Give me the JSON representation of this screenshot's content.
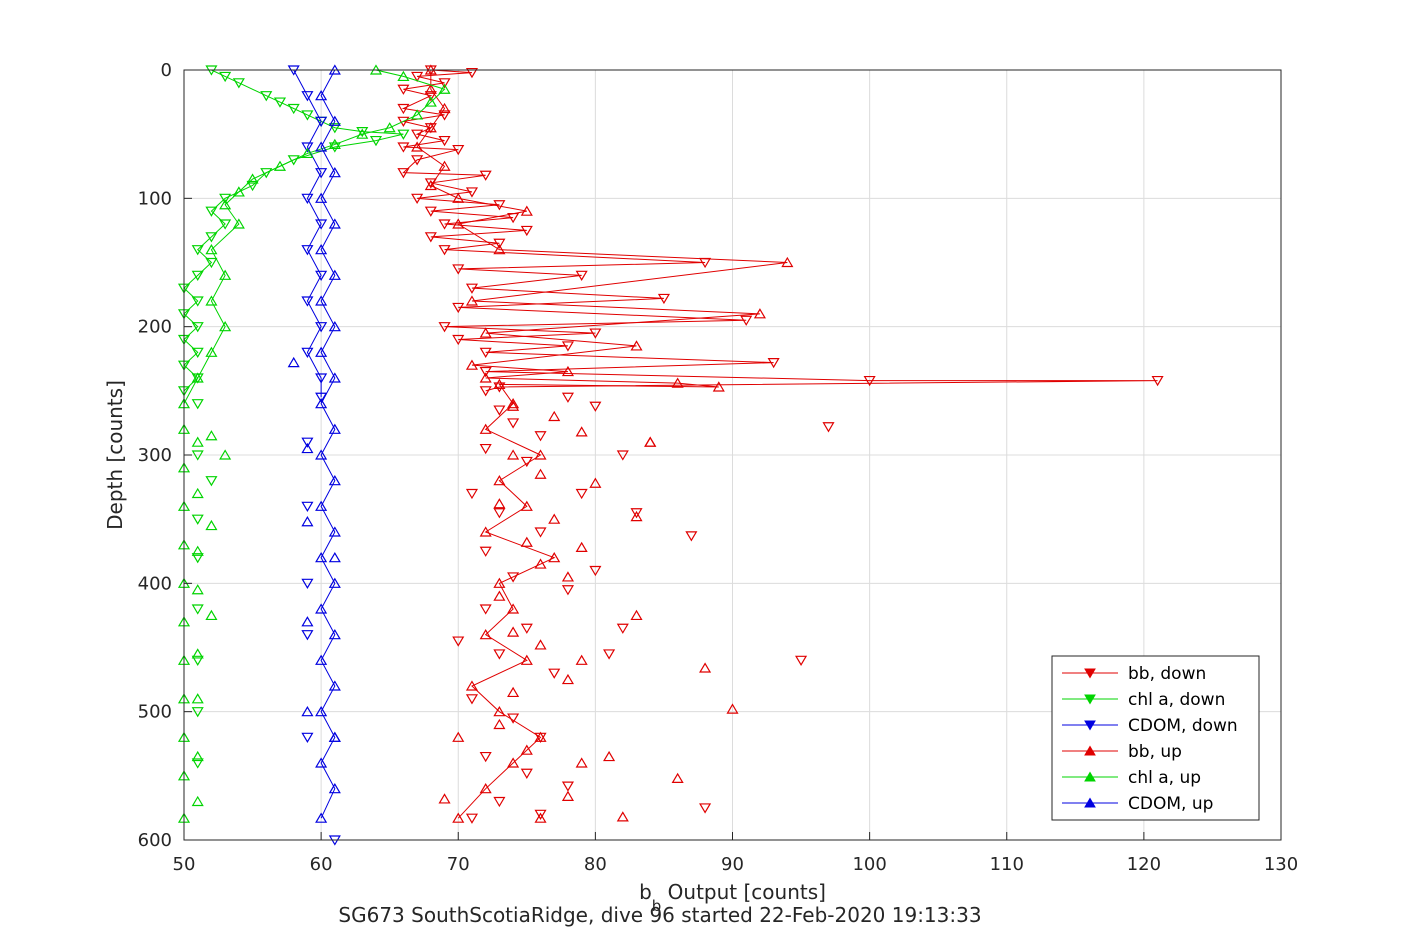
{
  "chart_data": {
    "type": "scatter",
    "xlabel": "b",
    "xlabel_sub": "b",
    "xlabel_rest": " Output [counts]",
    "ylabel": "Depth [counts]",
    "caption": "SG673 SouthScotiaRidge, dive 96 started 22-Feb-2020 19:13:33",
    "xlim": [
      50,
      130
    ],
    "ylim": [
      0,
      600
    ],
    "y_reversed": true,
    "xticks": [
      50,
      60,
      70,
      80,
      90,
      100,
      110,
      120,
      130
    ],
    "yticks": [
      0,
      100,
      200,
      300,
      400,
      500,
      600
    ],
    "grid": true,
    "legend_position": "bottom-right",
    "series": [
      {
        "name": "bb, down",
        "color": "#e00000",
        "marker": "down-triangle",
        "line": true,
        "points": [
          [
            68,
            0
          ],
          [
            71,
            2
          ],
          [
            67,
            5
          ],
          [
            69,
            10
          ],
          [
            66,
            15
          ],
          [
            68,
            20
          ],
          [
            66,
            30
          ],
          [
            69,
            35
          ],
          [
            66,
            40
          ],
          [
            68,
            45
          ],
          [
            67,
            50
          ],
          [
            69,
            55
          ],
          [
            66,
            60
          ],
          [
            70,
            62
          ],
          [
            67,
            70
          ],
          [
            66,
            80
          ],
          [
            72,
            82
          ],
          [
            68,
            88
          ],
          [
            71,
            95
          ],
          [
            67,
            100
          ],
          [
            73,
            105
          ],
          [
            68,
            110
          ],
          [
            74,
            115
          ],
          [
            69,
            120
          ],
          [
            75,
            125
          ],
          [
            68,
            130
          ],
          [
            73,
            135
          ],
          [
            69,
            140
          ],
          [
            88,
            150
          ],
          [
            70,
            155
          ],
          [
            79,
            160
          ],
          [
            71,
            170
          ],
          [
            85,
            178
          ],
          [
            70,
            185
          ],
          [
            91,
            195
          ],
          [
            69,
            200
          ],
          [
            80,
            205
          ],
          [
            70,
            210
          ],
          [
            78,
            215
          ],
          [
            72,
            220
          ],
          [
            93,
            228
          ],
          [
            72,
            235
          ],
          [
            100,
            242
          ],
          [
            121,
            242
          ],
          [
            73,
            247
          ],
          [
            72,
            250
          ]
        ]
      },
      {
        "name": "chl a, down",
        "color": "#00d400",
        "marker": "down-triangle",
        "line": true,
        "points": [
          [
            52,
            0
          ],
          [
            53,
            5
          ],
          [
            54,
            10
          ],
          [
            56,
            20
          ],
          [
            57,
            25
          ],
          [
            58,
            30
          ],
          [
            59,
            35
          ],
          [
            60,
            40
          ],
          [
            61,
            45
          ],
          [
            63,
            48
          ],
          [
            66,
            50
          ],
          [
            64,
            55
          ],
          [
            61,
            60
          ],
          [
            58,
            70
          ],
          [
            56,
            80
          ],
          [
            55,
            90
          ],
          [
            53,
            100
          ],
          [
            52,
            110
          ],
          [
            53,
            120
          ],
          [
            52,
            130
          ],
          [
            51,
            140
          ],
          [
            52,
            150
          ],
          [
            51,
            160
          ],
          [
            50,
            170
          ],
          [
            51,
            180
          ],
          [
            50,
            190
          ],
          [
            51,
            200
          ],
          [
            50,
            210
          ],
          [
            51,
            220
          ],
          [
            50,
            230
          ],
          [
            51,
            240
          ],
          [
            50,
            250
          ]
        ]
      },
      {
        "name": "CDOM, down",
        "color": "#0000e0",
        "marker": "down-triangle",
        "line": true,
        "points": [
          [
            58,
            0
          ],
          [
            59,
            20
          ],
          [
            60,
            40
          ],
          [
            59,
            60
          ],
          [
            60,
            80
          ],
          [
            59,
            100
          ],
          [
            60,
            120
          ],
          [
            59,
            140
          ],
          [
            60,
            160
          ],
          [
            59,
            180
          ],
          [
            60,
            200
          ],
          [
            59,
            220
          ],
          [
            60,
            240
          ],
          [
            60,
            255
          ]
        ]
      },
      {
        "name": "bb, up",
        "color": "#e00000",
        "marker": "up-triangle",
        "line": true,
        "points": [
          [
            70,
            583
          ],
          [
            72,
            560
          ],
          [
            74,
            540
          ],
          [
            76,
            520
          ],
          [
            73,
            500
          ],
          [
            71,
            480
          ],
          [
            75,
            460
          ],
          [
            72,
            440
          ],
          [
            74,
            420
          ],
          [
            73,
            400
          ],
          [
            77,
            380
          ],
          [
            72,
            360
          ],
          [
            75,
            340
          ],
          [
            73,
            320
          ],
          [
            76,
            300
          ],
          [
            72,
            280
          ],
          [
            74,
            260
          ],
          [
            73,
            245
          ],
          [
            89,
            247
          ],
          [
            86,
            244
          ],
          [
            72,
            240
          ],
          [
            78,
            235
          ],
          [
            71,
            230
          ],
          [
            83,
            215
          ],
          [
            72,
            205
          ],
          [
            92,
            190
          ],
          [
            71,
            180
          ],
          [
            94,
            150
          ],
          [
            73,
            140
          ],
          [
            70,
            120
          ],
          [
            75,
            110
          ],
          [
            70,
            100
          ],
          [
            68,
            90
          ],
          [
            69,
            75
          ],
          [
            67,
            60
          ],
          [
            68,
            45
          ],
          [
            69,
            30
          ],
          [
            68,
            15
          ],
          [
            68,
            0
          ]
        ]
      },
      {
        "name": "chl a, up",
        "color": "#00d400",
        "marker": "up-triangle",
        "line": true,
        "points": [
          [
            50,
            583
          ],
          [
            50,
            550
          ],
          [
            50,
            520
          ],
          [
            50,
            490
          ],
          [
            50,
            460
          ],
          [
            50,
            430
          ],
          [
            50,
            400
          ],
          [
            50,
            370
          ],
          [
            50,
            340
          ],
          [
            50,
            310
          ],
          [
            50,
            280
          ],
          [
            50,
            260
          ],
          [
            51,
            240
          ],
          [
            52,
            220
          ],
          [
            53,
            200
          ],
          [
            52,
            180
          ],
          [
            53,
            160
          ],
          [
            52,
            140
          ],
          [
            54,
            120
          ],
          [
            53,
            105
          ],
          [
            54,
            95
          ],
          [
            55,
            85
          ],
          [
            57,
            75
          ],
          [
            59,
            65
          ],
          [
            61,
            58
          ],
          [
            63,
            50
          ],
          [
            65,
            45
          ],
          [
            67,
            35
          ],
          [
            68,
            25
          ],
          [
            69,
            15
          ],
          [
            66,
            5
          ],
          [
            64,
            0
          ]
        ]
      },
      {
        "name": "CDOM, up",
        "color": "#0000e0",
        "marker": "up-triangle",
        "line": true,
        "points": [
          [
            60,
            583
          ],
          [
            61,
            560
          ],
          [
            60,
            540
          ],
          [
            61,
            520
          ],
          [
            60,
            500
          ],
          [
            61,
            480
          ],
          [
            60,
            460
          ],
          [
            61,
            440
          ],
          [
            60,
            420
          ],
          [
            61,
            400
          ],
          [
            60,
            380
          ],
          [
            61,
            360
          ],
          [
            60,
            340
          ],
          [
            61,
            320
          ],
          [
            60,
            300
          ],
          [
            61,
            280
          ],
          [
            60,
            260
          ],
          [
            61,
            240
          ],
          [
            60,
            220
          ],
          [
            61,
            200
          ],
          [
            60,
            180
          ],
          [
            61,
            160
          ],
          [
            60,
            140
          ],
          [
            61,
            120
          ],
          [
            60,
            100
          ],
          [
            61,
            80
          ],
          [
            60,
            60
          ],
          [
            61,
            40
          ],
          [
            60,
            20
          ],
          [
            61,
            0
          ]
        ]
      }
    ],
    "scatter_bb_deep": {
      "down": [
        [
          73,
          265
        ],
        [
          74,
          275
        ],
        [
          76,
          285
        ],
        [
          72,
          295
        ],
        [
          75,
          305
        ],
        [
          71,
          330
        ],
        [
          73,
          345
        ],
        [
          76,
          360
        ],
        [
          72,
          375
        ],
        [
          74,
          395
        ],
        [
          78,
          405
        ],
        [
          72,
          420
        ],
        [
          75,
          435
        ],
        [
          73,
          455
        ],
        [
          77,
          470
        ],
        [
          71,
          490
        ],
        [
          74,
          505
        ],
        [
          76,
          520
        ],
        [
          72,
          535
        ],
        [
          75,
          548
        ],
        [
          78,
          558
        ],
        [
          73,
          570
        ],
        [
          76,
          580
        ],
        [
          71,
          583
        ],
        [
          78,
          255
        ],
        [
          80,
          262
        ],
        [
          82,
          300
        ],
        [
          79,
          330
        ],
        [
          83,
          345
        ],
        [
          80,
          390
        ],
        [
          82,
          435
        ],
        [
          81,
          455
        ],
        [
          97,
          278
        ],
        [
          95,
          460
        ],
        [
          88,
          575
        ],
        [
          87,
          363
        ],
        [
          70,
          445
        ]
      ],
      "up": [
        [
          74,
          262
        ],
        [
          77,
          270
        ],
        [
          79,
          282
        ],
        [
          84,
          290
        ],
        [
          74,
          300
        ],
        [
          76,
          315
        ],
        [
          80,
          322
        ],
        [
          73,
          338
        ],
        [
          77,
          350
        ],
        [
          75,
          368
        ],
        [
          79,
          372
        ],
        [
          76,
          385
        ],
        [
          78,
          395
        ],
        [
          73,
          410
        ],
        [
          83,
          425
        ],
        [
          74,
          438
        ],
        [
          76,
          448
        ],
        [
          79,
          460
        ],
        [
          78,
          475
        ],
        [
          74,
          485
        ],
        [
          90,
          498
        ],
        [
          73,
          510
        ],
        [
          70,
          520
        ],
        [
          75,
          530
        ],
        [
          79,
          540
        ],
        [
          81,
          535
        ],
        [
          86,
          552
        ],
        [
          78,
          566
        ],
        [
          82,
          582
        ],
        [
          69,
          568
        ],
        [
          76,
          583
        ],
        [
          88,
          466
        ],
        [
          84,
          290
        ],
        [
          83,
          348
        ]
      ]
    },
    "scatter_chl_deep": {
      "down": [
        [
          51,
          260
        ],
        [
          51,
          300
        ],
        [
          52,
          320
        ],
        [
          51,
          350
        ],
        [
          51,
          380
        ],
        [
          51,
          420
        ],
        [
          51,
          460
        ],
        [
          51,
          500
        ],
        [
          51,
          540
        ]
      ],
      "up": [
        [
          52,
          285
        ],
        [
          51,
          290
        ],
        [
          53,
          300
        ],
        [
          51,
          330
        ],
        [
          52,
          355
        ],
        [
          51,
          375
        ],
        [
          51,
          405
        ],
        [
          52,
          425
        ],
        [
          51,
          455
        ],
        [
          51,
          490
        ],
        [
          51,
          535
        ],
        [
          51,
          570
        ]
      ]
    },
    "scatter_cdom_deep": {
      "down": [
        [
          59,
          290
        ],
        [
          59,
          340
        ],
        [
          59,
          400
        ],
        [
          59,
          440
        ],
        [
          59,
          520
        ],
        [
          61,
          600
        ]
      ],
      "up": [
        [
          58,
          228
        ],
        [
          59,
          295
        ],
        [
          59,
          352
        ],
        [
          61,
          380
        ],
        [
          59,
          430
        ],
        [
          59,
          500
        ],
        [
          61,
          520
        ]
      ]
    }
  }
}
